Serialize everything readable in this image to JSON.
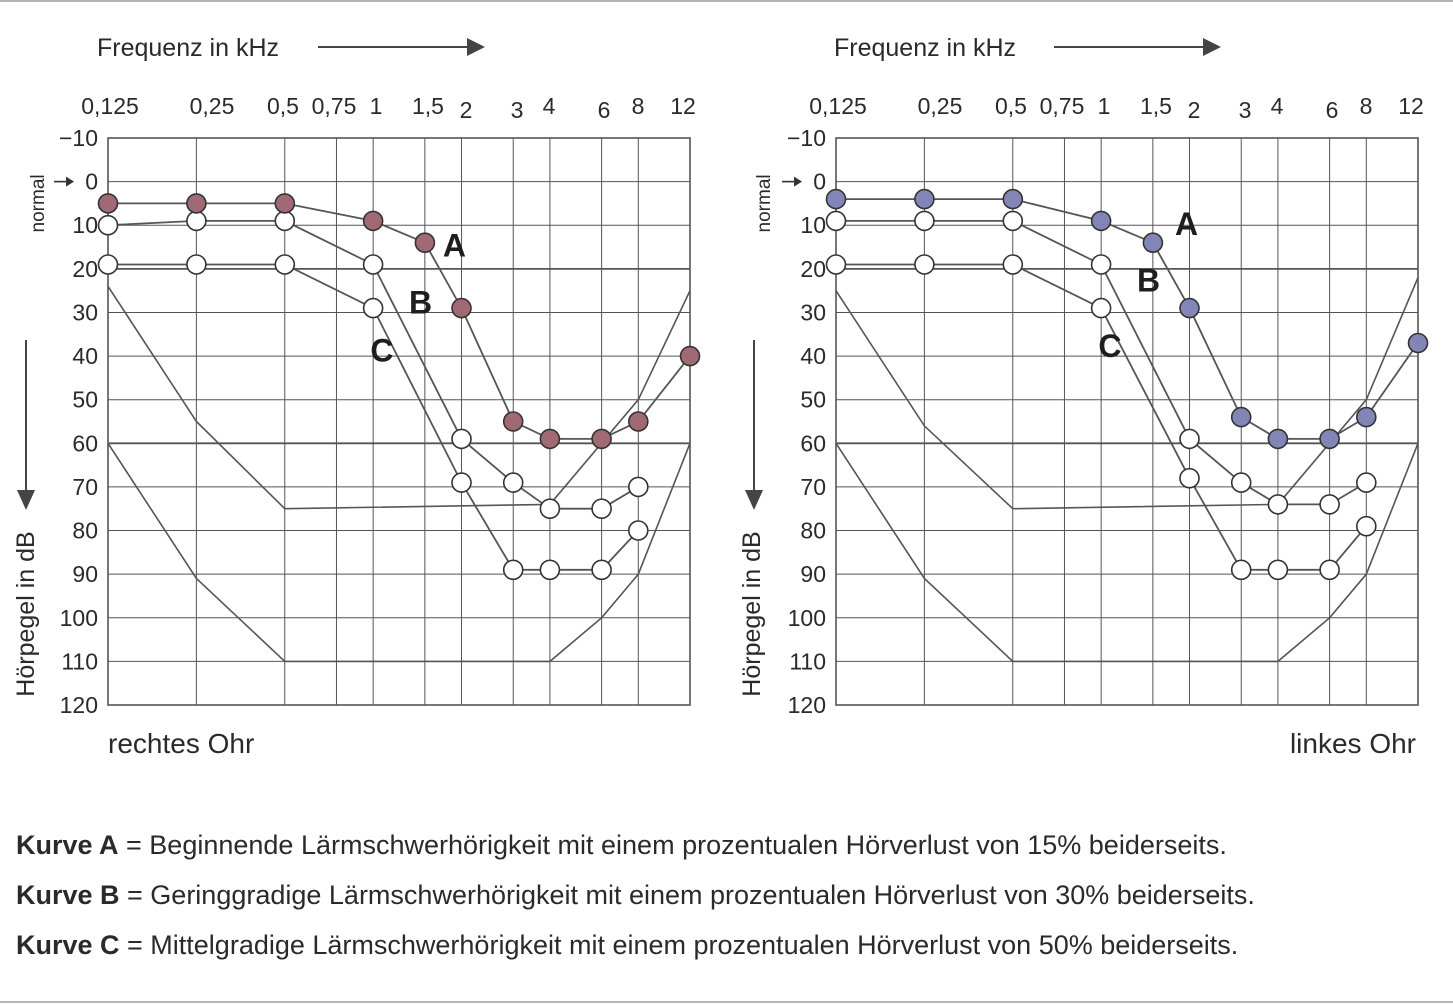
{
  "chart_data": [
    {
      "type": "line",
      "ear": "rechtes Ohr",
      "xlabel": "Frequenz in kHz",
      "ylabel": "Hörpegel in dB",
      "normal_label": "normal",
      "x_tick_labels": [
        "0,125",
        "0,25",
        "0,5",
        "0,75",
        "1",
        "1,5",
        "2",
        "3",
        "4",
        "6",
        "8",
        "12"
      ],
      "y_tick_labels": [
        "−10",
        "0",
        "10",
        "20",
        "30",
        "40",
        "50",
        "60",
        "70",
        "80",
        "90",
        "100",
        "110",
        "120"
      ],
      "ylim": [
        -10,
        120
      ],
      "y_inverted": true,
      "grid": true,
      "x_scale": "log",
      "curve_labels": [
        {
          "label": "A",
          "x": 1.5,
          "y": 14
        },
        {
          "label": "B",
          "x": 1.15,
          "y": 27
        },
        {
          "label": "C",
          "x": 0.85,
          "y": 38
        }
      ],
      "boundaries": [
        [
          [
            0.125,
            24
          ],
          [
            0.25,
            55
          ],
          [
            0.5,
            75
          ],
          [
            4,
            74
          ],
          [
            8,
            50
          ],
          [
            12,
            25
          ]
        ],
        [
          [
            0.125,
            60
          ],
          [
            0.25,
            91
          ],
          [
            0.5,
            110
          ],
          [
            4,
            110
          ],
          [
            6,
            100
          ],
          [
            8,
            90
          ],
          [
            12,
            60
          ]
        ]
      ],
      "series": [
        {
          "x": [
            0.125,
            0.25,
            0.5,
            1,
            1.5,
            2,
            3,
            4,
            6,
            8,
            12
          ],
          "values": [
            5,
            5,
            5,
            9,
            14,
            29,
            55,
            59,
            59,
            55,
            40
          ],
          "marker": "filled"
        },
        {
          "x": [
            0.125,
            0.25,
            0.5,
            1,
            2,
            3,
            4,
            6,
            8
          ],
          "values": [
            10,
            9,
            9,
            19,
            59,
            69,
            75,
            75,
            70
          ],
          "marker": "open"
        },
        {
          "x": [
            0.125,
            0.25,
            0.5,
            1,
            2,
            3,
            4,
            6,
            8
          ],
          "values": [
            19,
            19,
            19,
            29,
            69,
            89,
            89,
            89,
            80
          ],
          "marker": "open"
        }
      ]
    },
    {
      "type": "line",
      "ear": "linkes Ohr",
      "xlabel": "Frequenz in kHz",
      "ylabel": "Hörpegel in dB",
      "normal_label": "normal",
      "x_tick_labels": [
        "0,125",
        "0,25",
        "0,5",
        "0,75",
        "1",
        "1,5",
        "2",
        "3",
        "4",
        "6",
        "8",
        "12"
      ],
      "y_tick_labels": [
        "−10",
        "0",
        "10",
        "20",
        "30",
        "40",
        "50",
        "60",
        "70",
        "80",
        "90",
        "100",
        "110",
        "120"
      ],
      "ylim": [
        -10,
        120
      ],
      "y_inverted": true,
      "grid": true,
      "x_scale": "log",
      "curve_labels": [
        {
          "label": "A",
          "x": 1.55,
          "y": 9
        },
        {
          "label": "B",
          "x": 1.15,
          "y": 22
        },
        {
          "label": "C",
          "x": 0.85,
          "y": 37
        }
      ],
      "boundaries": [
        [
          [
            0.125,
            25
          ],
          [
            0.25,
            56
          ],
          [
            0.5,
            75
          ],
          [
            4,
            74
          ],
          [
            8,
            50
          ],
          [
            12,
            22
          ]
        ],
        [
          [
            0.125,
            60
          ],
          [
            0.25,
            91
          ],
          [
            0.5,
            110
          ],
          [
            4,
            110
          ],
          [
            6,
            100
          ],
          [
            8,
            90
          ],
          [
            12,
            60
          ]
        ]
      ],
      "series": [
        {
          "x": [
            0.125,
            0.25,
            0.5,
            1,
            1.5,
            2,
            3,
            4,
            6,
            8,
            12
          ],
          "values": [
            4,
            4,
            4,
            9,
            14,
            29,
            54,
            59,
            59,
            54,
            37
          ],
          "marker": "filled"
        },
        {
          "x": [
            0.125,
            0.25,
            0.5,
            1,
            2,
            3,
            4,
            6,
            8
          ],
          "values": [
            9,
            9,
            9,
            19,
            59,
            69,
            74,
            74,
            69
          ],
          "marker": "open"
        },
        {
          "x": [
            0.125,
            0.25,
            0.5,
            1,
            2,
            3,
            4,
            6,
            8
          ],
          "values": [
            19,
            19,
            19,
            29,
            68,
            89,
            89,
            89,
            79
          ],
          "marker": "open"
        }
      ]
    }
  ],
  "colors": {
    "right_ear": "#a06a74",
    "left_ear": "#8286b6",
    "grid": "#555555",
    "curve": "#555555"
  },
  "legend": [
    {
      "key": "Kurve A",
      "text": " = Beginnende Lärmschwerhörigkeit mit einem prozentualen Hörverlust von 15% beiderseits."
    },
    {
      "key": "Kurve B",
      "text": " = Geringgradige Lärmschwerhörigkeit mit einem prozentualen Hörverlust von 30% beiderseits."
    },
    {
      "key": "Kurve C",
      "text": " = Mittelgradige Lärmschwerhörigkeit mit einem prozentualen Hörverlust von 50% beiderseits."
    }
  ]
}
